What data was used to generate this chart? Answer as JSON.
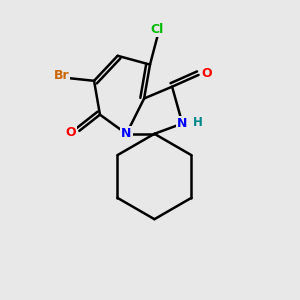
{
  "background_color": "#e8e8e8",
  "atom_colors": {
    "C": "#000000",
    "N": "#0000ff",
    "O": "#ff0000",
    "Cl": "#00bb00",
    "Br": "#cc6600",
    "H": "#008888"
  },
  "figsize": [
    3.0,
    3.0
  ],
  "dpi": 100
}
